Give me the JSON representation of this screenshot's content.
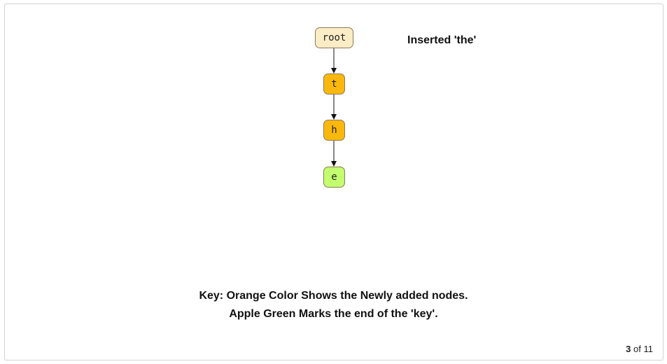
{
  "trie": {
    "nodes": [
      {
        "id": "root",
        "label": "root",
        "kind": "root"
      },
      {
        "id": "t",
        "label": "t",
        "kind": "new"
      },
      {
        "id": "h",
        "label": "h",
        "kind": "new"
      },
      {
        "id": "e",
        "label": "e",
        "kind": "end"
      }
    ],
    "edges": [
      {
        "from": "root",
        "to": "t"
      },
      {
        "from": "t",
        "to": "h"
      },
      {
        "from": "h",
        "to": "e"
      }
    ]
  },
  "status_text": "Inserted 'the'",
  "key": {
    "line1": "Key: Orange Color Shows the Newly added nodes.",
    "line2": "Apple Green Marks the end of the 'key'."
  },
  "pager": {
    "current": "3",
    "separator": "of",
    "total": "11"
  },
  "colors": {
    "root_fill": "#fdedc6",
    "new_fill": "#fbb80c",
    "end_fill": "#c3ff6e",
    "edge": "#111111"
  }
}
